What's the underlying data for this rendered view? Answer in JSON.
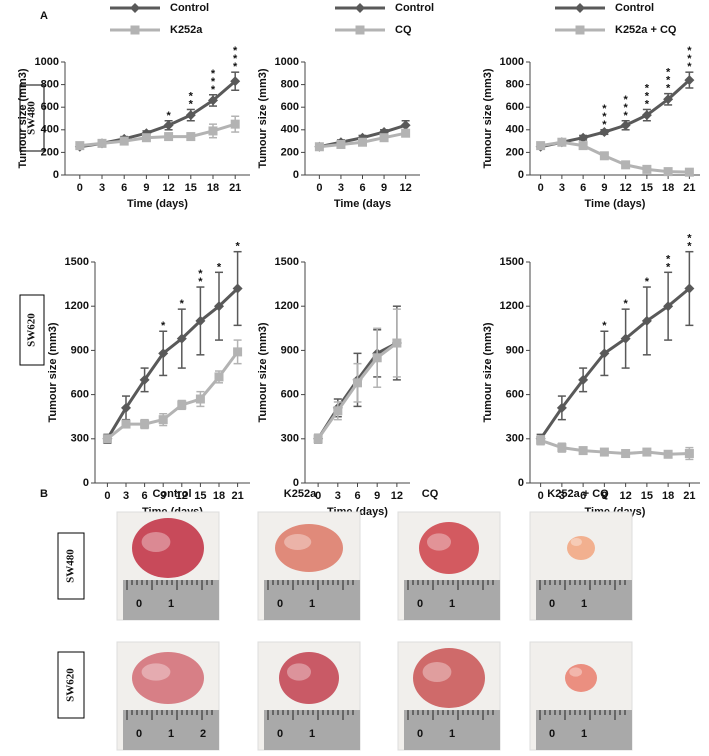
{
  "panel_labels": [
    "A",
    "B"
  ],
  "row_labels": [
    "SW480",
    "SW620"
  ],
  "chart_data": [
    {
      "type": "line",
      "ylabel": "Tumour size (mm3)",
      "xlabel": "Time (days)",
      "x": [
        0,
        3,
        6,
        9,
        12,
        15,
        18,
        21
      ],
      "xlim": [
        -2,
        23
      ],
      "xticks": [
        0,
        3,
        6,
        9,
        12,
        15,
        18,
        21
      ],
      "ylim": [
        0,
        1000
      ],
      "yticks": [
        0,
        200,
        400,
        600,
        800,
        1000
      ],
      "legend": "top",
      "series": [
        {
          "name": "Control",
          "color": "#595959",
          "marker": "diamond",
          "values": [
            250,
            280,
            320,
            370,
            440,
            530,
            660,
            830
          ],
          "errors": [
            20,
            20,
            20,
            20,
            40,
            50,
            50,
            80
          ]
        },
        {
          "name": "K252a",
          "color": "#b3b3b3",
          "marker": "square",
          "values": [
            260,
            280,
            300,
            330,
            340,
            340,
            390,
            450
          ],
          "errors": [
            20,
            20,
            20,
            30,
            30,
            30,
            60,
            70
          ]
        }
      ],
      "annotations": [
        {
          "x": 12,
          "text": "*"
        },
        {
          "x": 15,
          "text": "**"
        },
        {
          "x": 18,
          "text": "***"
        },
        {
          "x": 21,
          "text": "***"
        }
      ]
    },
    {
      "type": "line",
      "ylabel": "Tumour size (mm3)",
      "xlabel": "Time (days",
      "x": [
        0,
        3,
        6,
        9,
        12
      ],
      "xlim": [
        -2,
        14
      ],
      "xticks": [
        0,
        3,
        6,
        9,
        12
      ],
      "ylim": [
        0,
        1000
      ],
      "yticks": [
        0,
        200,
        400,
        600,
        800,
        1000
      ],
      "legend": "top",
      "series": [
        {
          "name": "Control",
          "color": "#595959",
          "marker": "diamond",
          "values": [
            250,
            290,
            330,
            380,
            440
          ],
          "errors": [
            20,
            20,
            20,
            20,
            40
          ]
        },
        {
          "name": "CQ",
          "color": "#b3b3b3",
          "marker": "square",
          "values": [
            250,
            270,
            290,
            330,
            370
          ],
          "errors": [
            20,
            20,
            20,
            20,
            30
          ]
        }
      ],
      "annotations": []
    },
    {
      "type": "line",
      "ylabel": "Tumour size (mm3)",
      "xlabel": "Time (days)",
      "x": [
        0,
        3,
        6,
        9,
        12,
        15,
        18,
        21
      ],
      "xlim": [
        -1.5,
        22.5
      ],
      "xticks": [
        0,
        3,
        6,
        9,
        12,
        15,
        18,
        21
      ],
      "ylim": [
        0,
        1000
      ],
      "yticks": [
        0,
        200,
        400,
        600,
        800,
        1000
      ],
      "legend": "top",
      "series": [
        {
          "name": "Control",
          "color": "#595959",
          "marker": "diamond",
          "values": [
            250,
            290,
            330,
            380,
            440,
            530,
            670,
            840
          ],
          "errors": [
            20,
            20,
            20,
            20,
            40,
            50,
            50,
            70
          ]
        },
        {
          "name": "K252a + CQ",
          "color": "#b3b3b3",
          "marker": "square",
          "values": [
            260,
            290,
            260,
            170,
            90,
            50,
            30,
            25
          ],
          "errors": [
            20,
            20,
            20,
            20,
            15,
            10,
            10,
            10
          ]
        }
      ],
      "annotations": [
        {
          "x": 9,
          "text": "***"
        },
        {
          "x": 12,
          "text": "***"
        },
        {
          "x": 15,
          "text": "***"
        },
        {
          "x": 18,
          "text": "***"
        },
        {
          "x": 21,
          "text": "***"
        }
      ]
    },
    {
      "type": "line",
      "ylabel": "Tumour size (mm3)",
      "xlabel": "Time (days)",
      "x": [
        0,
        3,
        6,
        9,
        12,
        15,
        18,
        21
      ],
      "xlim": [
        -2,
        23
      ],
      "xticks": [
        0,
        3,
        6,
        9,
        12,
        15,
        18,
        21
      ],
      "ylim": [
        0,
        1500
      ],
      "yticks": [
        0,
        300,
        600,
        900,
        1200,
        1500
      ],
      "legend": "none",
      "series": [
        {
          "name": "Control",
          "color": "#595959",
          "marker": "diamond",
          "values": [
            300,
            510,
            700,
            880,
            980,
            1100,
            1200,
            1320
          ],
          "errors": [
            30,
            80,
            80,
            150,
            200,
            230,
            230,
            250
          ]
        },
        {
          "name": "K252a",
          "color": "#b3b3b3",
          "marker": "square",
          "values": [
            300,
            400,
            400,
            430,
            530,
            570,
            720,
            890
          ],
          "errors": [
            20,
            20,
            30,
            40,
            30,
            50,
            40,
            80
          ]
        }
      ],
      "annotations": [
        {
          "x": 9,
          "text": "*"
        },
        {
          "x": 12,
          "text": "*"
        },
        {
          "x": 15,
          "text": "**"
        },
        {
          "x": 18,
          "text": "*"
        },
        {
          "x": 21,
          "text": "*"
        }
      ]
    },
    {
      "type": "line",
      "ylabel": "Tumour size (mm3)",
      "xlabel": "Time (days)",
      "x": [
        0,
        3,
        6,
        9,
        12
      ],
      "xlim": [
        -2,
        14
      ],
      "xticks": [
        0,
        3,
        6,
        9,
        12
      ],
      "ylim": [
        0,
        1500
      ],
      "yticks": [
        0,
        300,
        600,
        900,
        1200,
        1500
      ],
      "legend": "none",
      "series": [
        {
          "name": "Control",
          "color": "#595959",
          "marker": "diamond",
          "values": [
            300,
            510,
            700,
            880,
            950
          ],
          "errors": [
            30,
            60,
            180,
            160,
            250
          ]
        },
        {
          "name": "CQ",
          "color": "#b3b3b3",
          "marker": "square",
          "values": [
            300,
            490,
            680,
            850,
            950
          ],
          "errors": [
            30,
            60,
            130,
            200,
            230
          ]
        }
      ],
      "annotations": []
    },
    {
      "type": "line",
      "ylabel": "Tumour size (mm3)",
      "xlabel": "Time (days)",
      "x": [
        0,
        3,
        6,
        9,
        12,
        15,
        18,
        21
      ],
      "xlim": [
        -1.5,
        22.5
      ],
      "xticks": [
        0,
        3,
        6,
        9,
        12,
        15,
        18,
        21
      ],
      "ylim": [
        0,
        1500
      ],
      "yticks": [
        0,
        300,
        600,
        900,
        1200,
        1500
      ],
      "legend": "none",
      "series": [
        {
          "name": "Control",
          "color": "#595959",
          "marker": "diamond",
          "values": [
            300,
            510,
            700,
            880,
            980,
            1100,
            1200,
            1320
          ],
          "errors": [
            30,
            80,
            80,
            150,
            200,
            230,
            230,
            250
          ]
        },
        {
          "name": "K252a + CQ",
          "color": "#b3b3b3",
          "marker": "square",
          "values": [
            290,
            240,
            220,
            210,
            200,
            210,
            195,
            200
          ],
          "errors": [
            30,
            30,
            20,
            20,
            20,
            20,
            20,
            40
          ]
        }
      ],
      "annotations": [
        {
          "x": 9,
          "text": "*"
        },
        {
          "x": 12,
          "text": "*"
        },
        {
          "x": 15,
          "text": "*"
        },
        {
          "x": 18,
          "text": "**"
        },
        {
          "x": 21,
          "text": "**"
        }
      ]
    }
  ],
  "photos": {
    "headers": [
      "Control",
      "K252a",
      "CQ",
      "K252a + CQ"
    ],
    "row_labels": [
      "SW480",
      "SW620"
    ],
    "ruler_labels": [
      [
        [
          "0",
          "1"
        ],
        [
          "0",
          "1"
        ],
        [
          "0",
          "1"
        ],
        [
          "0",
          "1"
        ]
      ],
      [
        [
          "0",
          "1",
          "2"
        ],
        [
          "0",
          "1"
        ],
        [
          "0",
          "1"
        ],
        [
          "0",
          "1"
        ]
      ]
    ]
  }
}
